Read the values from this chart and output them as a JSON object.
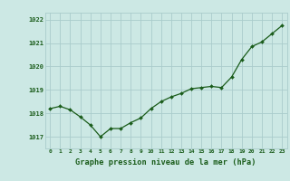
{
  "x": [
    0,
    1,
    2,
    3,
    4,
    5,
    6,
    7,
    8,
    9,
    10,
    11,
    12,
    13,
    14,
    15,
    16,
    17,
    18,
    19,
    20,
    21,
    22,
    23
  ],
  "y": [
    1018.2,
    1018.3,
    1018.15,
    1017.85,
    1017.5,
    1017.0,
    1017.35,
    1017.35,
    1017.6,
    1017.8,
    1018.2,
    1018.5,
    1018.7,
    1018.85,
    1019.05,
    1019.1,
    1019.15,
    1019.1,
    1019.55,
    1020.3,
    1020.85,
    1021.05,
    1021.4,
    1021.75
  ],
  "line_color": "#1a5c1a",
  "marker_color": "#1a5c1a",
  "bg_color": "#cce8e4",
  "grid_color": "#aacccc",
  "xlabel": "Graphe pression niveau de la mer (hPa)",
  "xlabel_color": "#1a5c1a",
  "tick_color": "#1a5c1a",
  "ylim": [
    1016.5,
    1022.3
  ],
  "yticks": [
    1017,
    1018,
    1019,
    1020,
    1021,
    1022
  ],
  "xticks": [
    0,
    1,
    2,
    3,
    4,
    5,
    6,
    7,
    8,
    9,
    10,
    11,
    12,
    13,
    14,
    15,
    16,
    17,
    18,
    19,
    20,
    21,
    22,
    23
  ],
  "xlim": [
    -0.5,
    23.5
  ]
}
